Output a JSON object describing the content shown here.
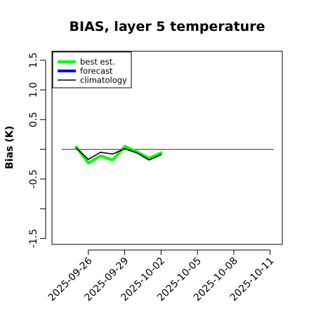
{
  "chart_data": {
    "type": "line",
    "title": "BIAS, layer 5 temperature",
    "xlabel": "",
    "ylabel": "Bias (K)",
    "ylim": [
      -1.6,
      1.65
    ],
    "xlim": [
      "2025-09-23",
      "2025-10-12"
    ],
    "yticks": [
      -1.5,
      -1.0,
      -0.5,
      0.0,
      0.5,
      1.0,
      1.5
    ],
    "ytick_labels": [
      "-1.5",
      "",
      "-0.5",
      "",
      "0.5",
      "1.0",
      "1.5"
    ],
    "xticks": [
      "2025-09-26",
      "2025-09-29",
      "2025-10-02",
      "2025-10-05",
      "2025-10-08",
      "2025-10-11"
    ],
    "highlighted_xtick": "2025-10-02",
    "highlight_color": "#228b22",
    "reference_line_y": 0.0,
    "grid": false,
    "legend_position": "top-left",
    "series": [
      {
        "name": "best est.",
        "color": "#00ff00",
        "x": [
          "2025-09-25",
          "2025-09-26",
          "2025-09-27",
          "2025-09-28",
          "2025-09-29",
          "2025-09-30",
          "2025-10-01",
          "2025-10-02"
        ],
        "values": [
          0.04,
          -0.23,
          -0.11,
          -0.18,
          0.05,
          -0.04,
          -0.15,
          -0.06
        ]
      },
      {
        "name": "forecast",
        "color": "#0000ff",
        "x": [],
        "values": []
      },
      {
        "name": "climatology",
        "color": "#000000",
        "x": [
          "2025-09-25",
          "2025-09-26",
          "2025-09-27",
          "2025-09-28",
          "2025-09-29",
          "2025-09-30",
          "2025-10-01",
          "2025-10-02"
        ],
        "values": [
          0.02,
          -0.17,
          -0.05,
          -0.08,
          0.01,
          -0.06,
          -0.18,
          -0.09
        ]
      }
    ]
  }
}
